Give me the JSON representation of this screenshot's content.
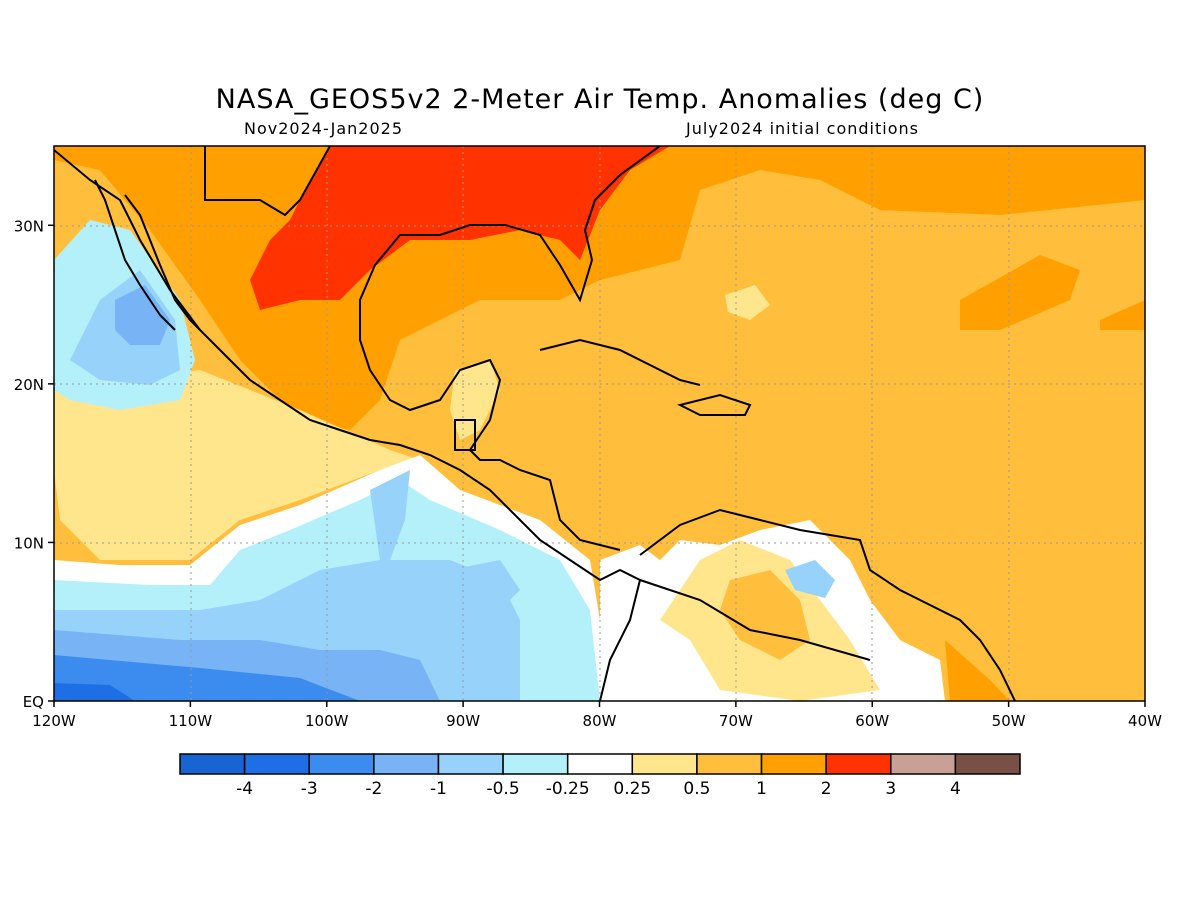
{
  "title": "NASA_GEOS5v2 2-Meter Air Temp. Anomalies (deg C)",
  "subtitle_left": "Nov2024-Jan2025",
  "subtitle_right": "July2024 initial conditions",
  "axes": {
    "lon_labels": [
      "120W",
      "110W",
      "100W",
      "90W",
      "80W",
      "70W",
      "60W",
      "50W",
      "40W"
    ],
    "lat_labels": [
      "EQ",
      "10N",
      "20N",
      "30N"
    ],
    "lon_range": [
      -120,
      -40
    ],
    "lat_range": [
      0,
      35
    ],
    "grid": true
  },
  "colorbar": {
    "colors": [
      "#1864d2",
      "#1e6ee6",
      "#3c8cf0",
      "#78b4f5",
      "#96d2fa",
      "#b4f0fa",
      "#ffffff",
      "#ffe68c",
      "#ffbe3c",
      "#ffa000",
      "#ff3200",
      "#c8a096",
      "#785046"
    ],
    "labels": [
      "-4",
      "-3",
      "-2",
      "-1",
      "-0.5",
      "-0.25",
      "0.25",
      "0.5",
      "1",
      "2",
      "3",
      "4"
    ]
  },
  "colors": {
    "strong_warm": "#ff3200",
    "warm": "#ffa000",
    "moderate_warm": "#ffbe3c",
    "slight_warm": "#ffe68c",
    "neutral": "#ffffff",
    "slight_cool": "#b4f0fa",
    "cool": "#96d2fa",
    "moderate_cool": "#78b4f5",
    "cold": "#3c8cf0",
    "colder": "#1e6ee6",
    "coldest": "#1864d2"
  }
}
